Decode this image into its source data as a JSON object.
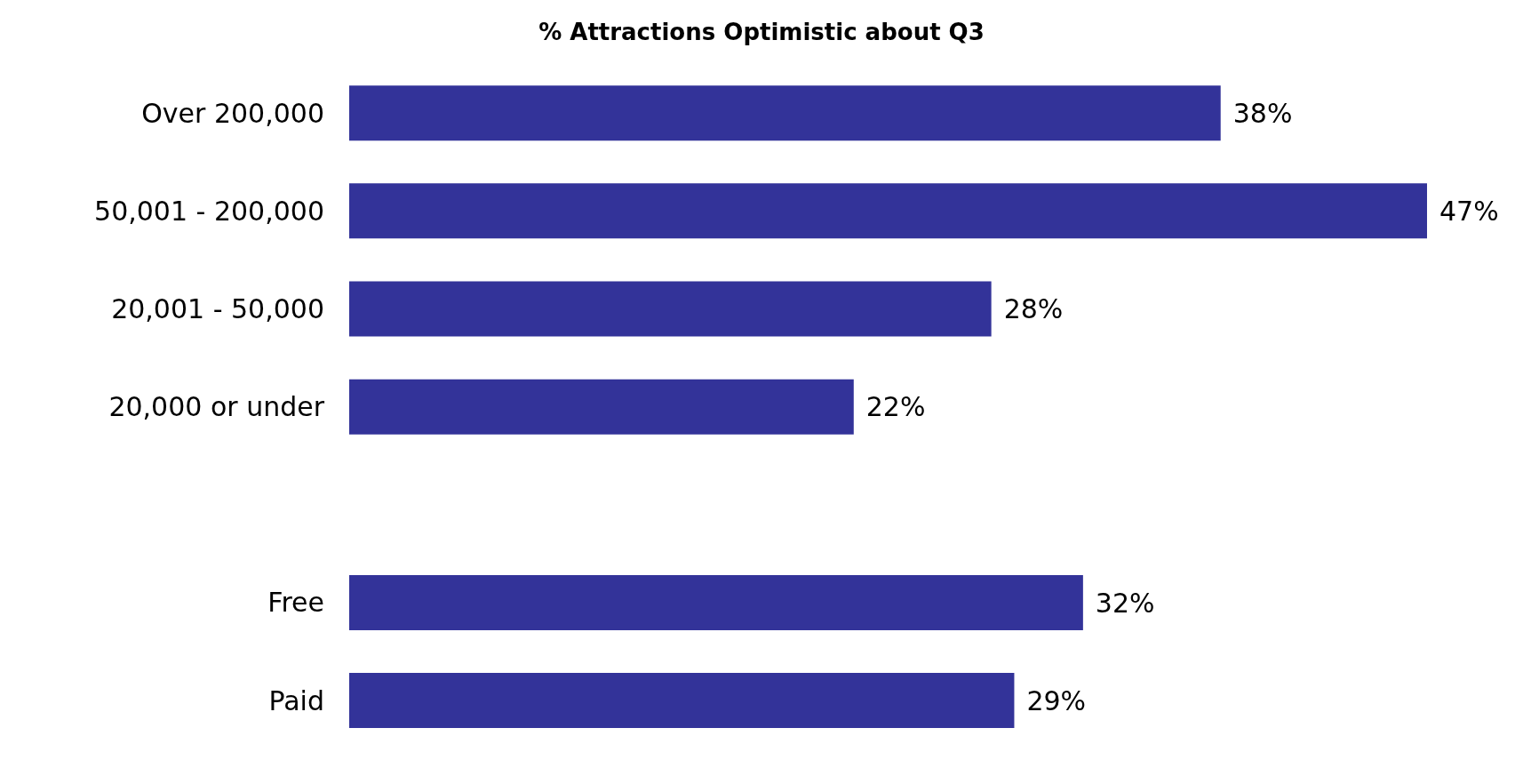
{
  "chart_data": {
    "type": "bar",
    "orientation": "horizontal",
    "title": "% Attractions Optimistic about Q3",
    "categories": [
      "Over 200,000",
      "50,001 - 200,000",
      "20,001 - 50,000",
      "20,000 or under",
      null,
      "Free",
      "Paid"
    ],
    "values": [
      38,
      47,
      28,
      22,
      null,
      32,
      29
    ],
    "value_labels": [
      "38%",
      "47%",
      "28%",
      "22%",
      null,
      "32%",
      "29%"
    ],
    "color": "#333399"
  }
}
